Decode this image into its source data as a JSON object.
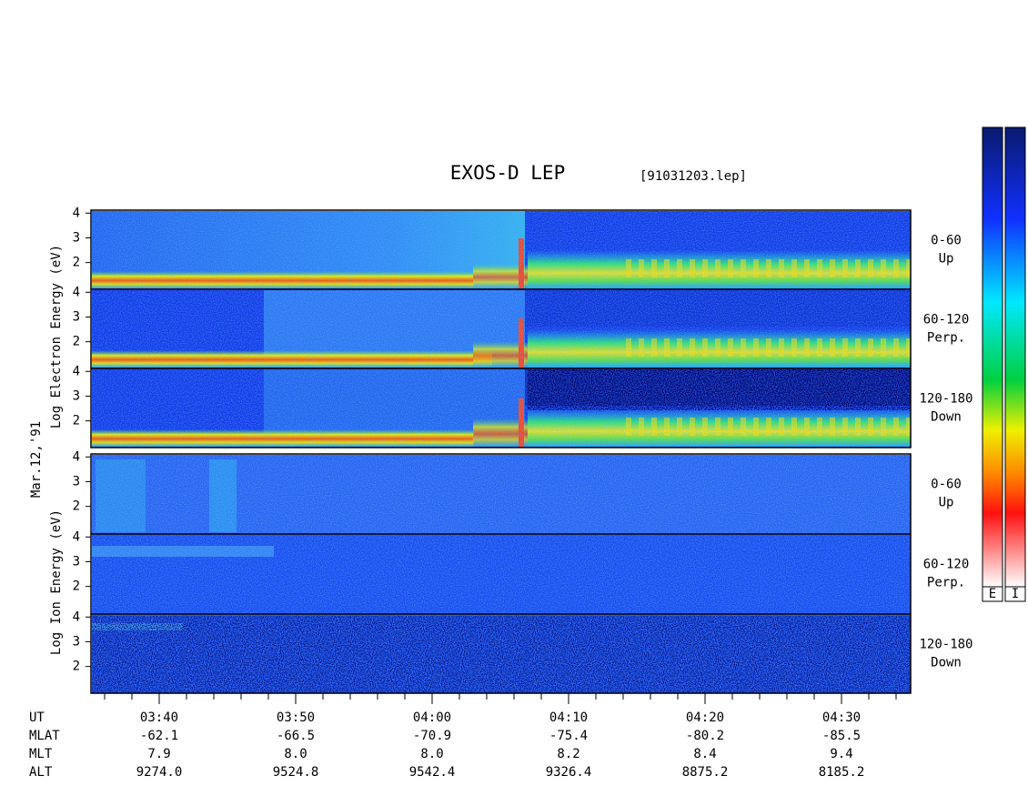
{
  "title": "EXOS-D LEP",
  "file": "[91031203.lep]",
  "date": "Mar.12,'91",
  "electron": {
    "ylabel": "Log  Electron  Energy (eV)",
    "panels": [
      {
        "range": "0-60",
        "direction": "Up",
        "yticks": [
          2,
          3,
          4
        ]
      },
      {
        "range": "60-120",
        "direction": "Perp.",
        "yticks": [
          2,
          3,
          4
        ]
      },
      {
        "range": "120-180",
        "direction": "Down",
        "yticks": [
          2,
          3,
          4
        ]
      }
    ]
  },
  "ion": {
    "ylabel": "Log  Ion  Energy (eV)",
    "panels": [
      {
        "range": "0-60",
        "direction": "Up",
        "yticks": [
          2,
          3,
          4
        ]
      },
      {
        "range": "60-120",
        "direction": "Perp.",
        "yticks": [
          2,
          3,
          4
        ]
      },
      {
        "range": "120-180",
        "direction": "Down",
        "yticks": [
          2,
          3,
          4
        ]
      }
    ]
  },
  "colorbar_labels": [
    "E",
    "I"
  ],
  "ephemeris": {
    "labels": [
      "UT",
      "MLAT",
      "MLT",
      "ALT"
    ],
    "columns": [
      [
        "03:40",
        "-62.1",
        "7.9",
        "9274.0"
      ],
      [
        "03:50",
        "-66.5",
        "8.0",
        "9524.8"
      ],
      [
        "04:00",
        "-70.9",
        "8.0",
        "9542.4"
      ],
      [
        "04:10",
        "-75.4",
        "8.2",
        "9326.4"
      ],
      [
        "04:20",
        "-80.2",
        "8.4",
        "8875.2"
      ],
      [
        "04:30",
        "-85.5",
        "9.4",
        "8185.2"
      ]
    ]
  }
}
